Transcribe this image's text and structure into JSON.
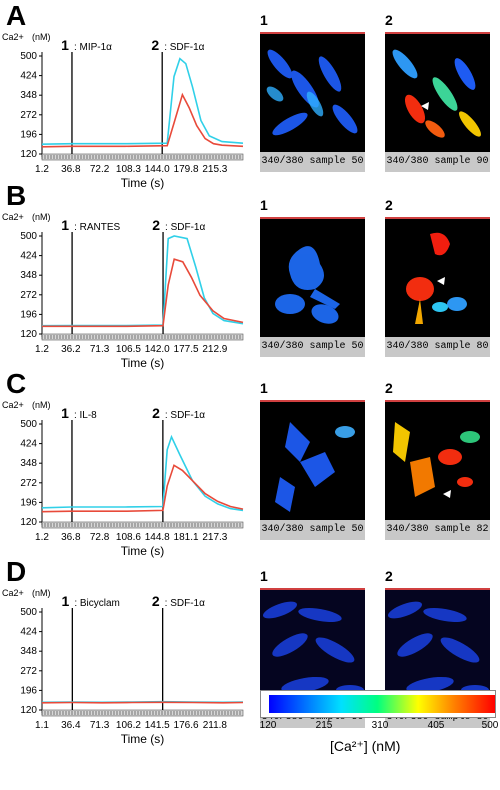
{
  "panels": [
    {
      "letter": "A",
      "y_unit_label": "(nM)",
      "y_var_label": "Ca2+",
      "event1": {
        "num": "1",
        "label": ": MIP-1α"
      },
      "event2": {
        "num": "2",
        "label": ": SDF-1α"
      },
      "xlabel": "Time (s)",
      "xticks": [
        "1.2",
        "36.8",
        "72.2",
        "108.3",
        "144.0",
        "179.8",
        "215.3"
      ],
      "yticks": [
        "120",
        "196",
        "272",
        "348",
        "424",
        "500"
      ],
      "images": [
        {
          "num": "1",
          "caption": "340/380 sample 50"
        },
        {
          "num": "2",
          "caption": "340/380 sample 90"
        }
      ]
    },
    {
      "letter": "B",
      "y_unit_label": "(nM)",
      "y_var_label": "Ca2+",
      "event1": {
        "num": "1",
        "label": ": RANTES"
      },
      "event2": {
        "num": "2",
        "label": ": SDF-1α"
      },
      "xlabel": "Time (s)",
      "xticks": [
        "1.2",
        "36.2",
        "71.3",
        "106.5",
        "142.0",
        "177.5",
        "212.9"
      ],
      "yticks": [
        "120",
        "196",
        "272",
        "348",
        "424",
        "500"
      ],
      "images": [
        {
          "num": "1",
          "caption": "340/380 sample 50"
        },
        {
          "num": "2",
          "caption": "340/380 sample 80"
        }
      ]
    },
    {
      "letter": "C",
      "y_unit_label": "(nM)",
      "y_var_label": "Ca2+",
      "event1": {
        "num": "1",
        "label": ": IL-8"
      },
      "event2": {
        "num": "2",
        "label": ": SDF-1α"
      },
      "xlabel": "Time (s)",
      "xticks": [
        "1.2",
        "36.8",
        "72.8",
        "108.6",
        "144.8",
        "181.1",
        "217.3"
      ],
      "yticks": [
        "120",
        "196",
        "272",
        "348",
        "424",
        "500"
      ],
      "images": [
        {
          "num": "1",
          "caption": "340/380 sample 50"
        },
        {
          "num": "2",
          "caption": "340/380 sample 82"
        }
      ]
    },
    {
      "letter": "D",
      "y_unit_label": "(nM)",
      "y_var_label": "Ca2+",
      "event1": {
        "num": "1",
        "label": ": Bicyclam"
      },
      "event2": {
        "num": "2",
        "label": ": SDF-1α"
      },
      "xlabel": "Time (s)",
      "xticks": [
        "1.1",
        "36.4",
        "71.3",
        "106.2",
        "141.5",
        "176.6",
        "211.8"
      ],
      "yticks": [
        "120",
        "196",
        "272",
        "348",
        "424",
        "500"
      ],
      "images": [
        {
          "num": "1",
          "caption": "340/380 sample 50"
        },
        {
          "num": "2",
          "caption": "340/380 sample 80"
        }
      ]
    }
  ],
  "colorbar": {
    "ticks": [
      "120",
      "215",
      "310",
      "405",
      "500"
    ],
    "label": "[Ca²⁺] (nM)"
  },
  "colors": {
    "cyan_trace": "#30d0e8",
    "red_trace": "#e84a3a"
  },
  "chart_data": [
    {
      "type": "line",
      "panel": "A",
      "xlabel": "Time (s)",
      "ylabel": "Ca2+ (nM)",
      "ylim": [
        120,
        500
      ],
      "xlim": [
        1.2,
        240
      ],
      "events": [
        {
          "label": "1 : MIP-1α",
          "x": 36.8
        },
        {
          "label": "2 : SDF-1α",
          "x": 144.0
        }
      ],
      "series": [
        {
          "color": "#30d0e8",
          "x": [
            1.2,
            36.8,
            100,
            150,
            158,
            165,
            172,
            180,
            190,
            200,
            215,
            240
          ],
          "y": [
            158,
            160,
            160,
            162,
            420,
            490,
            470,
            380,
            250,
            190,
            168,
            162
          ]
        },
        {
          "color": "#e84a3a",
          "x": [
            1.2,
            36.8,
            100,
            150,
            158,
            168,
            176,
            185,
            195,
            205,
            215,
            240
          ],
          "y": [
            148,
            150,
            150,
            152,
            240,
            350,
            300,
            230,
            180,
            160,
            154,
            150
          ]
        }
      ]
    },
    {
      "type": "line",
      "panel": "B",
      "xlabel": "Time (s)",
      "ylabel": "Ca2+ (nM)",
      "ylim": [
        120,
        500
      ],
      "xlim": [
        1.2,
        235
      ],
      "events": [
        {
          "label": "1 : RANTES",
          "x": 36.2
        },
        {
          "label": "2 : SDF-1α",
          "x": 142.0
        }
      ],
      "series": [
        {
          "color": "#30d0e8",
          "x": [
            1.2,
            36.2,
            100,
            142,
            148,
            155,
            170,
            180,
            190,
            200,
            212.9,
            235
          ],
          "y": [
            152,
            153,
            153,
            155,
            490,
            500,
            490,
            380,
            260,
            200,
            172,
            160
          ]
        },
        {
          "color": "#e84a3a",
          "x": [
            1.2,
            36.2,
            100,
            142,
            148,
            155,
            165,
            175,
            185,
            200,
            212.9,
            235
          ],
          "y": [
            150,
            150,
            150,
            152,
            310,
            410,
            400,
            340,
            270,
            210,
            180,
            165
          ]
        }
      ]
    },
    {
      "type": "line",
      "panel": "C",
      "xlabel": "Time (s)",
      "ylabel": "Ca2+ (nM)",
      "ylim": [
        120,
        500
      ],
      "xlim": [
        1.2,
        240
      ],
      "events": [
        {
          "label": "1 : IL-8",
          "x": 36.8
        },
        {
          "label": "2 : SDF-1α",
          "x": 144.8
        }
      ],
      "series": [
        {
          "color": "#30d0e8",
          "x": [
            1.2,
            36.8,
            100,
            144.8,
            150,
            155,
            165,
            180,
            195,
            210,
            225,
            240
          ],
          "y": [
            175,
            178,
            178,
            180,
            400,
            450,
            380,
            280,
            220,
            190,
            172,
            165
          ]
        },
        {
          "color": "#e84a3a",
          "x": [
            1.2,
            36.8,
            100,
            144.8,
            150,
            158,
            168,
            180,
            195,
            210,
            225,
            240
          ],
          "y": [
            160,
            162,
            162,
            165,
            260,
            340,
            320,
            280,
            230,
            200,
            180,
            170
          ]
        }
      ]
    },
    {
      "type": "line",
      "panel": "D",
      "xlabel": "Time (s)",
      "ylabel": "Ca2+ (nM)",
      "ylim": [
        120,
        500
      ],
      "xlim": [
        1.1,
        235
      ],
      "events": [
        {
          "label": "1 : Bicyclam",
          "x": 36.4
        },
        {
          "label": "2 : SDF-1α",
          "x": 141.5
        }
      ],
      "series": [
        {
          "color": "#30d0e8",
          "x": [
            1.1,
            36.4,
            71.3,
            106.2,
            141.5,
            176.6,
            211.8,
            235
          ],
          "y": [
            150,
            151,
            150,
            151,
            152,
            151,
            150,
            151
          ]
        },
        {
          "color": "#e84a3a",
          "x": [
            1.1,
            36.4,
            71.3,
            106.2,
            141.5,
            176.6,
            211.8,
            235
          ],
          "y": [
            148,
            149,
            148,
            149,
            150,
            149,
            148,
            149
          ]
        }
      ]
    }
  ]
}
